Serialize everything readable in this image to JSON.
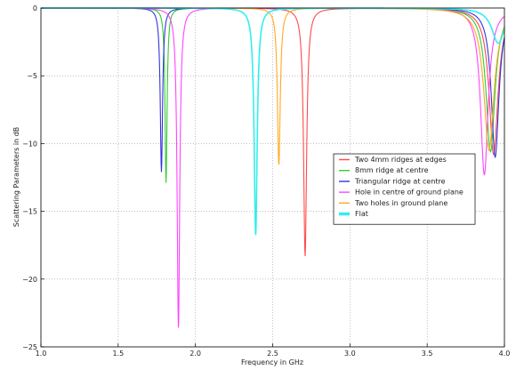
{
  "chart_data": {
    "type": "line",
    "xlabel": "Frequency in GHz",
    "ylabel": "Scattering Parameters in dB",
    "xlim": [
      1.0,
      4.0
    ],
    "ylim": [
      -25,
      0
    ],
    "xticks": [
      "1.0",
      "1.5",
      "2.0",
      "2.5",
      "3.0",
      "3.5",
      "4.0"
    ],
    "yticks": [
      "0",
      "−5",
      "−10",
      "−15",
      "−20",
      "−25"
    ],
    "grid": true,
    "legend_position": "center-right",
    "series": [
      {
        "name": "Two 4mm ridges at edges",
        "color": "#ff4a4a",
        "dips": [
          {
            "f": 2.71,
            "depth": -18.3,
            "w": 0.012
          },
          {
            "f": 3.93,
            "depth": -10.8,
            "w": 0.035
          }
        ]
      },
      {
        "name": "8mm ridge at centre",
        "color": "#33cc33",
        "dips": [
          {
            "f": 1.81,
            "depth": -12.9,
            "w": 0.008
          },
          {
            "f": 3.91,
            "depth": -10.6,
            "w": 0.035
          }
        ]
      },
      {
        "name": "Triangular ridge at centre",
        "color": "#3333dd",
        "dips": [
          {
            "f": 1.78,
            "depth": -12.1,
            "w": 0.009
          },
          {
            "f": 3.94,
            "depth": -11.0,
            "w": 0.03
          }
        ]
      },
      {
        "name": "Hole in  centre of ground plane",
        "color": "#ff44ff",
        "dips": [
          {
            "f": 1.89,
            "depth": -23.7,
            "w": 0.01
          },
          {
            "f": 3.87,
            "depth": -12.3,
            "w": 0.03
          }
        ]
      },
      {
        "name": "Two holes in ground plane",
        "color": "#ffaa22",
        "dips": [
          {
            "f": 2.54,
            "depth": -11.6,
            "w": 0.011
          },
          {
            "f": 3.9,
            "depth": -10.5,
            "w": 0.04
          }
        ]
      },
      {
        "name": "Flat",
        "color": "#33eeee",
        "dips": [
          {
            "f": 2.39,
            "depth": -16.8,
            "w": 0.012
          },
          {
            "f": 3.96,
            "depth": -2.6,
            "w": 0.05
          }
        ]
      }
    ]
  }
}
